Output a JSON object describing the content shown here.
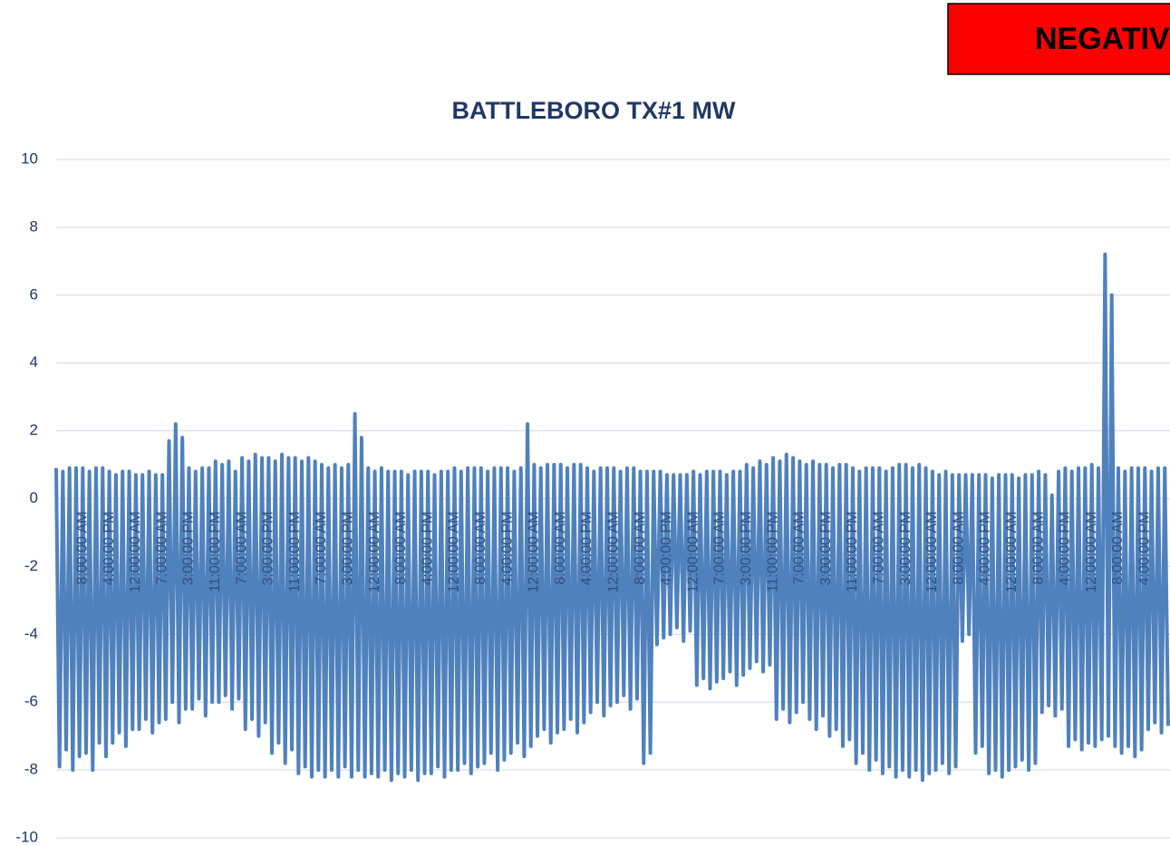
{
  "chart_data": {
    "type": "line",
    "title": "BATTLEBORO TX#1 MW",
    "badge": "NEGATIV",
    "badge_color": "#ff0000",
    "categories": [
      null,
      null,
      null,
      null,
      null,
      null,
      null,
      null,
      "8:00:00 AM",
      null,
      null,
      null,
      null,
      null,
      null,
      null,
      "4:00:00 PM",
      null,
      null,
      null,
      null,
      null,
      null,
      null,
      "12:00:00 AM",
      null,
      null,
      null,
      null,
      null,
      null,
      null,
      "7:00:00 AM",
      null,
      null,
      null,
      null,
      null,
      null,
      null,
      "3:00:00 PM",
      null,
      null,
      null,
      null,
      null,
      null,
      null,
      "11:00:00 PM",
      null,
      null,
      null,
      null,
      null,
      null,
      null,
      "7:00:00 AM",
      null,
      null,
      null,
      null,
      null,
      null,
      null,
      "3:00:00 PM",
      null,
      null,
      null,
      null,
      null,
      null,
      null,
      "11:00:00 PM",
      null,
      null,
      null,
      null,
      null,
      null,
      null,
      "7:00:00 AM",
      null,
      null,
      null,
      null,
      null,
      null,
      null,
      "3:00:00 PM",
      null,
      null,
      null,
      null,
      null,
      null,
      null,
      "12:00:00 AM",
      null,
      null,
      null,
      null,
      null,
      null,
      null,
      "8:00:00 AM",
      null,
      null,
      null,
      null,
      null,
      null,
      null,
      "4:00:00 PM",
      null,
      null,
      null,
      null,
      null,
      null,
      null,
      "12:00:00 AM",
      null,
      null,
      null,
      null,
      null,
      null,
      null,
      "8:00:00 AM",
      null,
      null,
      null,
      null,
      null,
      null,
      null,
      "4:00:00 PM",
      null,
      null,
      null,
      null,
      null,
      null,
      null,
      "12:00:00 AM",
      null,
      null,
      null,
      null,
      null,
      null,
      null,
      "8:00:00 AM",
      null,
      null,
      null,
      null,
      null,
      null,
      null,
      "4:00:00 PM",
      null,
      null,
      null,
      null,
      null,
      null,
      null,
      "12:00:00 AM",
      null,
      null,
      null,
      null,
      null,
      null,
      null,
      "8:00:00 AM",
      null,
      null,
      null,
      null,
      null,
      null,
      null,
      "4:00:00 PM",
      null,
      null,
      null,
      null,
      null,
      null,
      null,
      "12:00:00 AM",
      null,
      null,
      null,
      null,
      null,
      null,
      null,
      "7:00:00 AM",
      null,
      null,
      null,
      null,
      null,
      null,
      null,
      "3:00:00 PM",
      null,
      null,
      null,
      null,
      null,
      null,
      null,
      "11:00:00 PM",
      null,
      null,
      null,
      null,
      null,
      null,
      null,
      "7:00:00 AM",
      null,
      null,
      null,
      null,
      null,
      null,
      null,
      "3:00:00 PM",
      null,
      null,
      null,
      null,
      null,
      null,
      null,
      "11:00:00 PM",
      null,
      null,
      null,
      null,
      null,
      null,
      null,
      "7:00:00 AM",
      null,
      null,
      null,
      null,
      null,
      null,
      null,
      "3:00:00 PM",
      null,
      null,
      null,
      null,
      null,
      null,
      null,
      "12:00:00 AM",
      null,
      null,
      null,
      null,
      null,
      null,
      null,
      "8:00:00 AM",
      null,
      null,
      null,
      null,
      null,
      null,
      null,
      "4:00:00 PM",
      null,
      null,
      null,
      null,
      null,
      null,
      null,
      "12:00:00 AM",
      null,
      null,
      null,
      null,
      null,
      null,
      null,
      "8:00:00 AM",
      null,
      null,
      null,
      null,
      null,
      null,
      null,
      "4:00:00 PM",
      null,
      null,
      null,
      null,
      null,
      null,
      null,
      "12:00:00 AM",
      null,
      null,
      null,
      null,
      null,
      null,
      null,
      "8:00:00 AM",
      null,
      null,
      null,
      null,
      null,
      null,
      null,
      "4:00:00 PM",
      null,
      null,
      null,
      null,
      null,
      null,
      null
    ],
    "series": [
      {
        "name": "MW",
        "color": "#4f81bd",
        "values": [
          0.9,
          -7.9,
          0.8,
          -7.4,
          0.9,
          -8.0,
          0.9,
          -7.6,
          0.9,
          -7.5,
          0.8,
          -8.0,
          0.9,
          -7.2,
          0.9,
          -7.6,
          0.8,
          -7.2,
          0.7,
          -6.9,
          0.8,
          -7.3,
          0.8,
          -6.8,
          0.7,
          -6.8,
          0.7,
          -6.5,
          0.8,
          -6.9,
          0.7,
          -6.6,
          0.7,
          -6.5,
          1.7,
          -6.0,
          2.2,
          -6.6,
          1.8,
          -6.2,
          0.9,
          -6.2,
          0.8,
          -5.9,
          0.9,
          -6.4,
          0.9,
          -6.0,
          1.1,
          -6.0,
          1.0,
          -5.8,
          1.1,
          -6.2,
          0.8,
          -5.9,
          1.2,
          -6.8,
          1.1,
          -6.5,
          1.3,
          -7.0,
          1.2,
          -6.6,
          1.2,
          -7.5,
          1.1,
          -7.2,
          1.3,
          -7.8,
          1.2,
          -7.4,
          1.2,
          -8.1,
          1.1,
          -7.9,
          1.2,
          -8.2,
          1.1,
          -8.0,
          1.0,
          -8.2,
          0.9,
          -8.0,
          1.0,
          -8.2,
          0.9,
          -7.9,
          1.0,
          -8.2,
          2.5,
          -8.0,
          1.8,
          -8.2,
          0.9,
          -8.1,
          0.8,
          -8.2,
          0.9,
          -8.0,
          0.8,
          -8.3,
          0.8,
          -8.1,
          0.8,
          -8.2,
          0.7,
          -8.0,
          0.8,
          -8.3,
          0.8,
          -8.1,
          0.8,
          -8.1,
          0.7,
          -7.9,
          0.8,
          -8.2,
          0.8,
          -8.0,
          0.9,
          -8.0,
          0.8,
          -7.8,
          0.9,
          -8.1,
          0.9,
          -7.9,
          0.9,
          -7.8,
          0.8,
          -7.5,
          0.9,
          -8.0,
          0.9,
          -7.7,
          0.9,
          -7.5,
          0.8,
          -7.2,
          0.9,
          -7.6,
          2.2,
          -7.3,
          1.0,
          -7.0,
          0.9,
          -6.8,
          1.0,
          -7.2,
          1.0,
          -6.9,
          1.0,
          -6.8,
          0.9,
          -6.5,
          1.0,
          -6.9,
          1.0,
          -6.6,
          0.9,
          -6.3,
          0.8,
          -6.0,
          0.9,
          -6.4,
          0.9,
          -6.1,
          0.9,
          -6.0,
          0.8,
          -5.8,
          0.9,
          -6.2,
          0.9,
          -5.9,
          0.8,
          -7.8,
          0.8,
          -7.5,
          0.8,
          -4.3,
          0.8,
          -4.1,
          0.7,
          -4.0,
          0.7,
          -3.8,
          0.7,
          -4.2,
          0.7,
          -3.9,
          0.8,
          -5.5,
          0.7,
          -5.3,
          0.8,
          -5.6,
          0.8,
          -5.4,
          0.8,
          -5.3,
          0.7,
          -5.1,
          0.8,
          -5.5,
          0.8,
          -5.2,
          1.0,
          -5.0,
          0.9,
          -4.8,
          1.1,
          -5.1,
          1.0,
          -4.9,
          1.2,
          -6.5,
          1.1,
          -6.2,
          1.3,
          -6.6,
          1.2,
          -6.3,
          1.1,
          -6.0,
          1.0,
          -6.5,
          1.1,
          -6.8,
          1.0,
          -6.4,
          1.0,
          -7.0,
          0.9,
          -6.8,
          1.0,
          -7.3,
          1.0,
          -7.1,
          0.9,
          -7.8,
          0.8,
          -7.5,
          0.9,
          -8.0,
          0.9,
          -7.7,
          0.9,
          -8.1,
          0.8,
          -7.9,
          0.9,
          -8.2,
          1.0,
          -8.0,
          1.0,
          -8.2,
          0.9,
          -8.0,
          1.0,
          -8.3,
          0.9,
          -8.1,
          0.8,
          -8.0,
          0.7,
          -7.8,
          0.8,
          -8.1,
          0.7,
          -7.9,
          0.7,
          -4.2,
          0.7,
          -4.0,
          0.7,
          -7.5,
          0.7,
          -7.3,
          0.7,
          -8.1,
          0.6,
          -8.0,
          0.7,
          -8.2,
          0.7,
          -8.0,
          0.7,
          -7.9,
          0.6,
          -7.7,
          0.7,
          -8.0,
          0.7,
          -7.8,
          0.8,
          -6.3,
          0.7,
          -6.1,
          0.1,
          -6.4,
          0.8,
          -6.2,
          0.9,
          -7.3,
          0.8,
          -7.1,
          0.9,
          -7.4,
          0.9,
          -7.2,
          1.0,
          -7.3,
          0.9,
          -7.1,
          7.2,
          -7.0,
          6.0,
          -7.3,
          0.9,
          -7.5,
          0.8,
          -7.3,
          0.9,
          -7.6,
          0.9,
          -7.4,
          0.9,
          -6.8,
          0.8,
          -6.6,
          0.9,
          -6.9,
          0.9,
          -6.7
        ]
      }
    ],
    "ylim": [
      -10,
      10
    ],
    "yticks": [
      10,
      8,
      6,
      4,
      2,
      0,
      -2,
      -4,
      -6,
      -8,
      -10
    ],
    "grid": true
  }
}
